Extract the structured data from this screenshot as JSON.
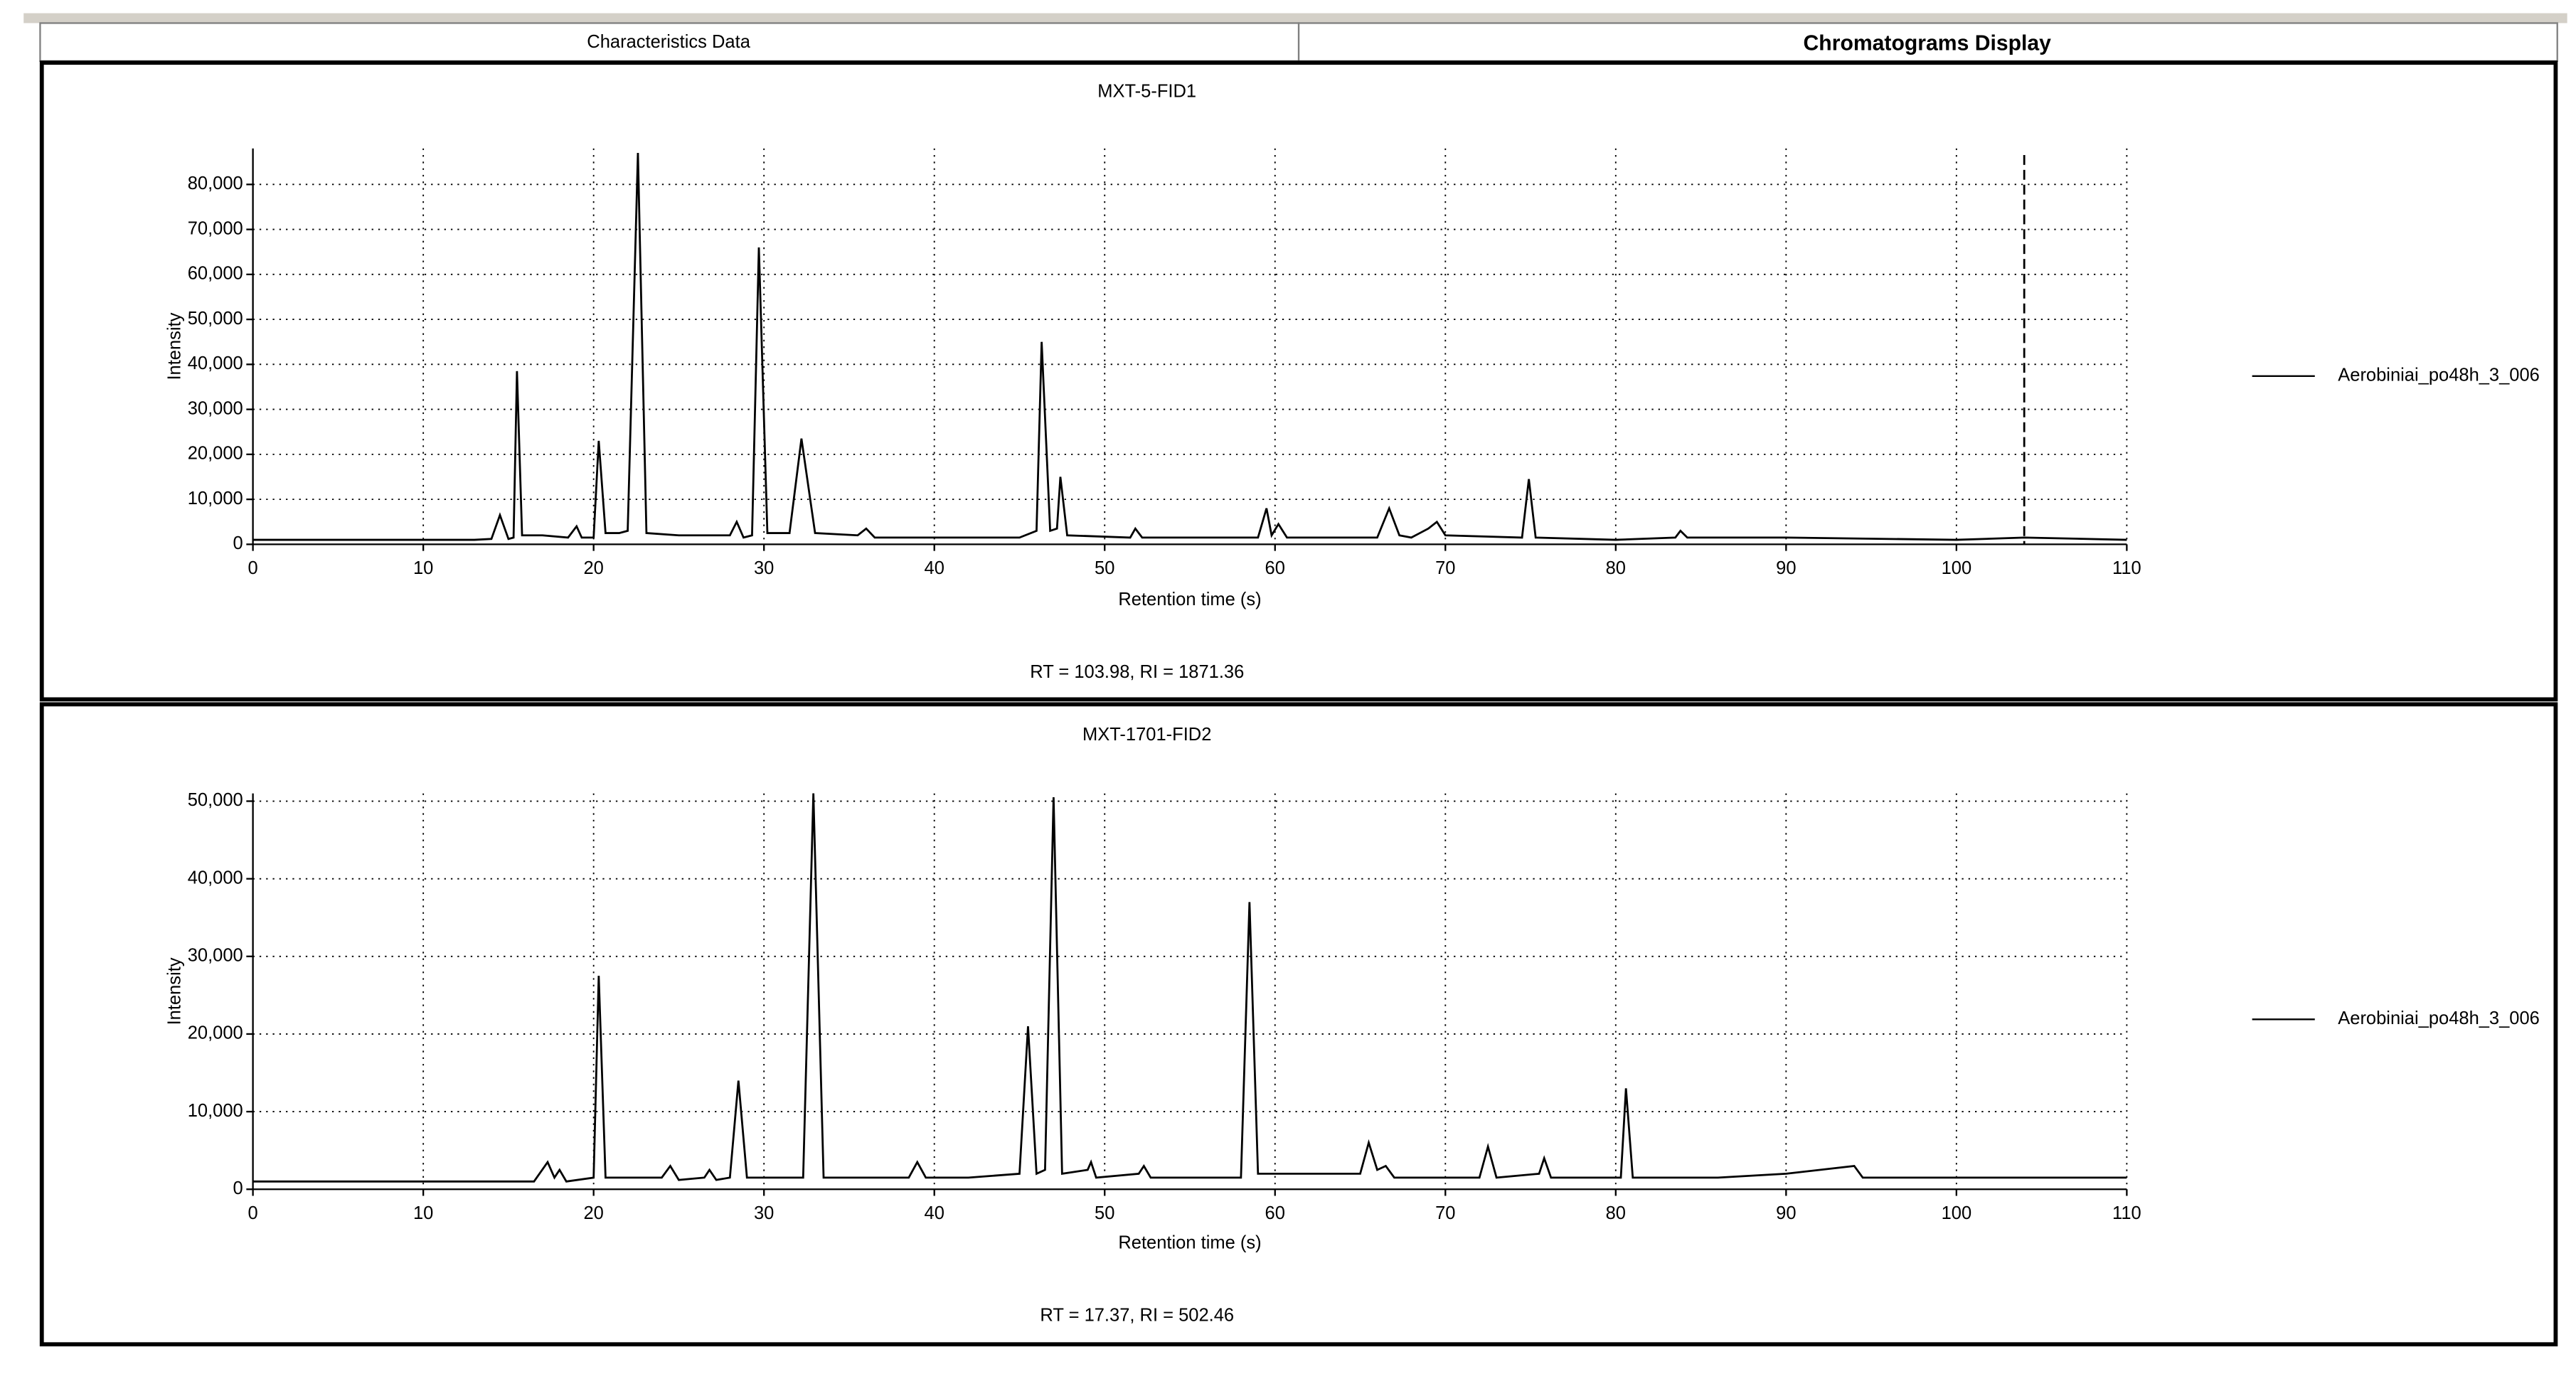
{
  "tabs": [
    "Characteristics Data",
    "Chromatograms Display"
  ],
  "chart_data": [
    {
      "type": "line",
      "title": "MXT-5-FID1",
      "x_label": "Retention time  (s)",
      "y_label": "Intensity",
      "annotation": "RT = 103.98, RI = 1871.36",
      "cursor_x": 103.98,
      "x": [
        0,
        13,
        14,
        14.5,
        15,
        15.3,
        15.5,
        15.8,
        17,
        18.5,
        19,
        19.3,
        20,
        20.3,
        20.7,
        21.5,
        22,
        22.6,
        23.1,
        25,
        28,
        28.4,
        28.8,
        29.3,
        29.7,
        30.2,
        31.5,
        32.2,
        33,
        35.5,
        36,
        36.5,
        40,
        45,
        46,
        46.3,
        46.8,
        47.2,
        47.4,
        47.8,
        51.5,
        51.8,
        52.2,
        59,
        59.5,
        59.8,
        60.2,
        60.7,
        66,
        66.7,
        67.3,
        68,
        68.5,
        69,
        69.5,
        70,
        74.5,
        74.9,
        75.3,
        80,
        83.5,
        83.8,
        84.2,
        90,
        100,
        104,
        110
      ],
      "series": [
        {
          "name": "Aerobiniai_po48h_3_006",
          "color": "#000000",
          "values": [
            1000,
            1000,
            1200,
            6500,
            1200,
            1500,
            38500,
            2000,
            2000,
            1500,
            4000,
            1500,
            1500,
            23000,
            2500,
            2500,
            3000,
            87000,
            2500,
            2000,
            2000,
            5000,
            1500,
            2000,
            66000,
            2500,
            2500,
            23500,
            2500,
            2000,
            3500,
            1500,
            1500,
            1500,
            3000,
            45000,
            3000,
            3500,
            15000,
            2000,
            1500,
            3500,
            1500,
            1500,
            8000,
            2000,
            4500,
            1500,
            1500,
            8000,
            2000,
            1500,
            2500,
            3500,
            5000,
            2000,
            1500,
            14500,
            1500,
            1000,
            1500,
            3000,
            1500,
            1500,
            1000,
            1500,
            1000
          ]
        }
      ],
      "xlim": [
        0,
        110
      ],
      "ylim": [
        0,
        88000
      ],
      "xticks": [
        0,
        10,
        20,
        30,
        40,
        50,
        60,
        70,
        80,
        90,
        100,
        110
      ],
      "yticks": [
        0,
        {
          "value": 10000,
          "label": "10,000"
        },
        {
          "value": 20000,
          "label": "20,000"
        },
        {
          "value": 30000,
          "label": "30,000"
        },
        {
          "value": 40000,
          "label": "40,000"
        },
        {
          "value": 50000,
          "label": "50,000"
        },
        {
          "value": 60000,
          "label": "60,000"
        },
        {
          "value": 70000,
          "label": "70,000"
        },
        {
          "value": 80000,
          "label": "80,000"
        }
      ],
      "grid": true,
      "legend": "right"
    },
    {
      "type": "line",
      "title": "MXT-1701-FID2",
      "x_label": "Retention time  (s)",
      "y_label": "Intensity",
      "annotation": "RT = 17.37, RI = 502.46",
      "x": [
        0,
        16.5,
        17.3,
        17.7,
        18,
        18.4,
        20,
        20.3,
        20.7,
        24,
        24.5,
        25,
        26.5,
        26.8,
        27.2,
        28,
        28.5,
        29,
        32.3,
        32.9,
        33.5,
        38.5,
        39,
        39.5,
        42,
        45,
        45.5,
        46,
        46.5,
        47,
        47.5,
        49,
        49.2,
        49.5,
        52,
        52.3,
        52.7,
        58,
        58.5,
        59,
        65,
        65.5,
        66,
        66.5,
        67,
        72,
        72.5,
        73,
        75.5,
        75.8,
        76.2,
        80.3,
        80.6,
        81,
        86,
        90,
        94,
        94.5,
        100,
        110
      ],
      "series": [
        {
          "name": "Aerobiniai_po48h_3_006",
          "color": "#000000",
          "values": [
            1000,
            1000,
            3500,
            1500,
            2500,
            1000,
            1500,
            27500,
            1500,
            1500,
            3000,
            1200,
            1500,
            2500,
            1200,
            1500,
            14000,
            1500,
            1500,
            51000,
            1500,
            1500,
            3500,
            1500,
            1500,
            2000,
            21000,
            2000,
            2500,
            50500,
            2000,
            2500,
            3500,
            1500,
            2000,
            3000,
            1500,
            1500,
            37000,
            2000,
            2000,
            6000,
            2500,
            3000,
            1500,
            1500,
            5500,
            1500,
            2000,
            4000,
            1500,
            1500,
            13000,
            1500,
            1500,
            2000,
            3000,
            1500,
            1500,
            1500
          ]
        }
      ],
      "xlim": [
        0,
        110
      ],
      "ylim": [
        0,
        51000
      ],
      "xticks": [
        0,
        10,
        20,
        30,
        40,
        50,
        60,
        70,
        80,
        90,
        100,
        110
      ],
      "yticks": [
        0,
        {
          "value": 10000,
          "label": "10,000"
        },
        {
          "value": 20000,
          "label": "20,000"
        },
        {
          "value": 30000,
          "label": "30,000"
        },
        {
          "value": 40000,
          "label": "40,000"
        },
        {
          "value": 50000,
          "label": "50,000"
        }
      ],
      "grid": true,
      "legend": "right"
    }
  ]
}
